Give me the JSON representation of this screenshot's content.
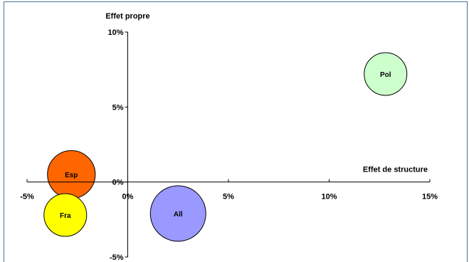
{
  "chart_data": {
    "type": "bubble",
    "xlabel": "Effet de structure",
    "ylabel": "Effet propre",
    "xlim": [
      -5,
      15
    ],
    "ylim": [
      -5,
      10
    ],
    "x_ticks": [
      -5,
      0,
      5,
      10,
      15
    ],
    "y_ticks": [
      -5,
      0,
      5,
      10
    ],
    "x_tick_labels": [
      "-5%",
      "0%",
      "5%",
      "10%",
      "15%"
    ],
    "y_tick_labels": [
      "-5%",
      "0%",
      "5%",
      "10%"
    ],
    "grid": false,
    "legend": "none",
    "points": [
      {
        "label": "Pol",
        "x": 12.8,
        "y": 7.2,
        "size": 1.0,
        "color": "#ccffcc"
      },
      {
        "label": "Esp",
        "x": -2.8,
        "y": 0.5,
        "size": 1.12,
        "color": "#ff6600"
      },
      {
        "label": "Fra",
        "x": -3.1,
        "y": -2.2,
        "size": 1.0,
        "color": "#ffff00"
      },
      {
        "label": "All",
        "x": 2.5,
        "y": -2.1,
        "size": 1.3,
        "color": "#9999ff"
      }
    ]
  }
}
